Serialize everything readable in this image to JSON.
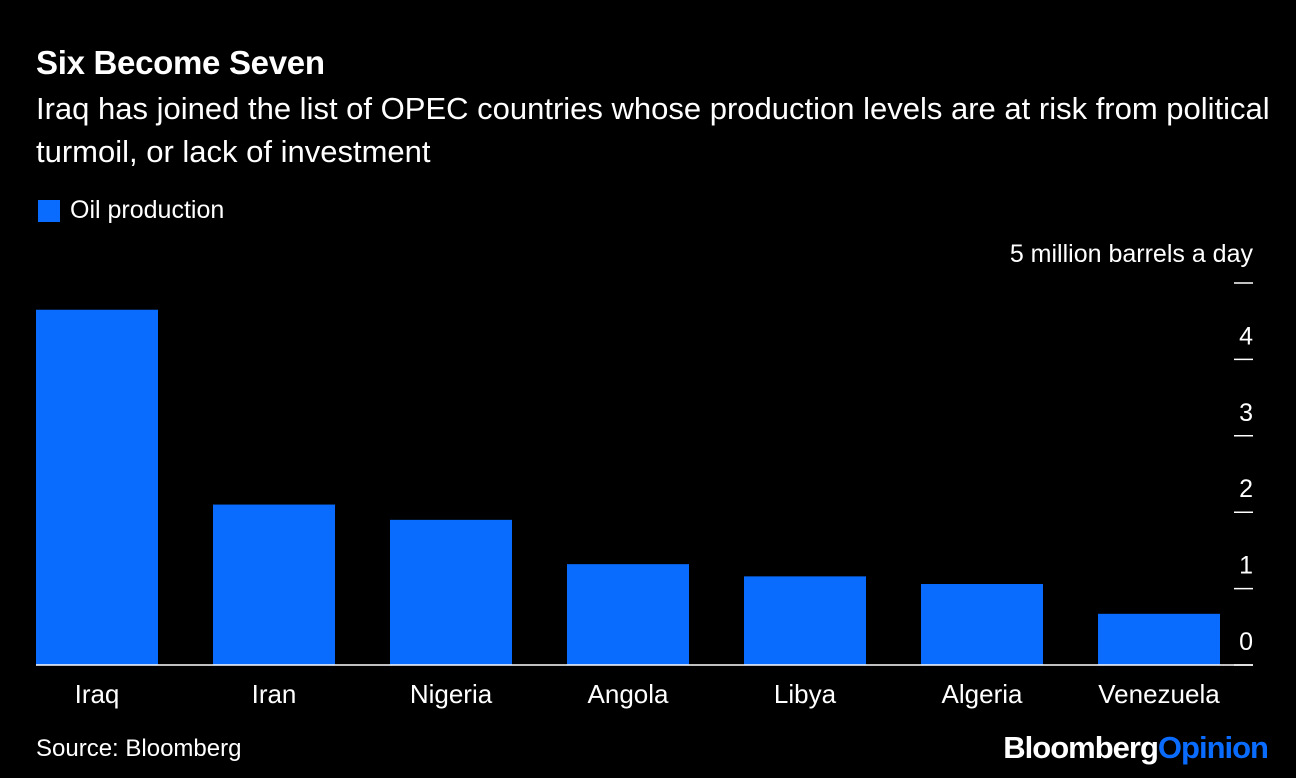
{
  "chart_data": {
    "type": "bar",
    "title": "Six Become Seven",
    "subtitle": "Iraq has joined the list of OPEC countries whose production levels are at risk from political turmoil, or lack of investment",
    "legend": [
      {
        "name": "Oil production",
        "color": "#0a6cff"
      }
    ],
    "unit_label": "5 million barrels a day",
    "categories": [
      "Iraq",
      "Iran",
      "Nigeria",
      "Angola",
      "Libya",
      "Algeria",
      "Venezuela"
    ],
    "values": [
      4.65,
      2.1,
      1.9,
      1.32,
      1.16,
      1.06,
      0.67
    ],
    "yticks": [
      0,
      1,
      2,
      3,
      4
    ],
    "ylim": [
      0,
      5
    ],
    "xlabel": "",
    "ylabel": "",
    "bar_color": "#0a6cff"
  },
  "footer": {
    "source": "Source: Bloomberg",
    "brand_primary": "Bloomberg",
    "brand_secondary": "Opinion"
  }
}
